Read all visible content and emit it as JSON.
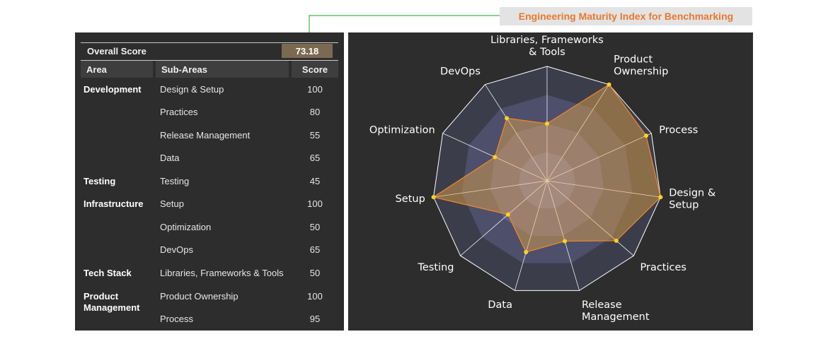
{
  "title": "Engineering Maturity Index for Benchmarking",
  "overall": {
    "label": "Overall Score",
    "value": "73.18"
  },
  "table": {
    "headers": {
      "area": "Area",
      "sub": "Sub-Areas",
      "score": "Score"
    },
    "rows": [
      {
        "area": "Development",
        "sub": "Design & Setup",
        "score": "100"
      },
      {
        "area": "",
        "sub": "Practices",
        "score": "80"
      },
      {
        "area": "",
        "sub": "Release Management",
        "score": "55"
      },
      {
        "area": "",
        "sub": "Data",
        "score": "65"
      },
      {
        "area": "Testing",
        "sub": "Testing",
        "score": "45"
      },
      {
        "area": "Infrastructure",
        "sub": "Setup",
        "score": "100"
      },
      {
        "area": "",
        "sub": "Optimization",
        "score": "50"
      },
      {
        "area": "",
        "sub": "DevOps",
        "score": "65"
      },
      {
        "area": "Tech Stack",
        "sub": "Libraries, Frameworks & Tools",
        "score": "50"
      },
      {
        "area": "Product Management",
        "sub": "Product Ownership",
        "score": "100"
      },
      {
        "area": "",
        "sub": "Process",
        "score": "95"
      }
    ]
  },
  "chart_data": {
    "type": "radar",
    "categories": [
      "Libraries, Frameworks & Tools",
      "Product Ownership",
      "Process",
      "Design & Setup",
      "Practices",
      "Release Management",
      "Data",
      "Testing",
      "Setup",
      "Optimization",
      "DevOps"
    ],
    "category_lines": [
      [
        "Libraries, Frameworks",
        "& Tools"
      ],
      [
        "Product",
        "Ownership"
      ],
      [
        "Process"
      ],
      [
        "Design &",
        "Setup"
      ],
      [
        "Practices"
      ],
      [
        "Release",
        "Management"
      ],
      [
        "Data"
      ],
      [
        "Testing"
      ],
      [
        "Setup"
      ],
      [
        "Optimization"
      ],
      [
        "DevOps"
      ]
    ],
    "series": [
      {
        "values": [
          50,
          100,
          95,
          100,
          80,
          55,
          65,
          45,
          100,
          50,
          65
        ]
      }
    ],
    "rmax": 100,
    "bands": 4,
    "colors": {
      "series_line": "#e8862e",
      "series_fill": "#e8a94a",
      "marker": "#ffd21f",
      "band": "#8f94e8",
      "grid": "#ffffff"
    }
  }
}
